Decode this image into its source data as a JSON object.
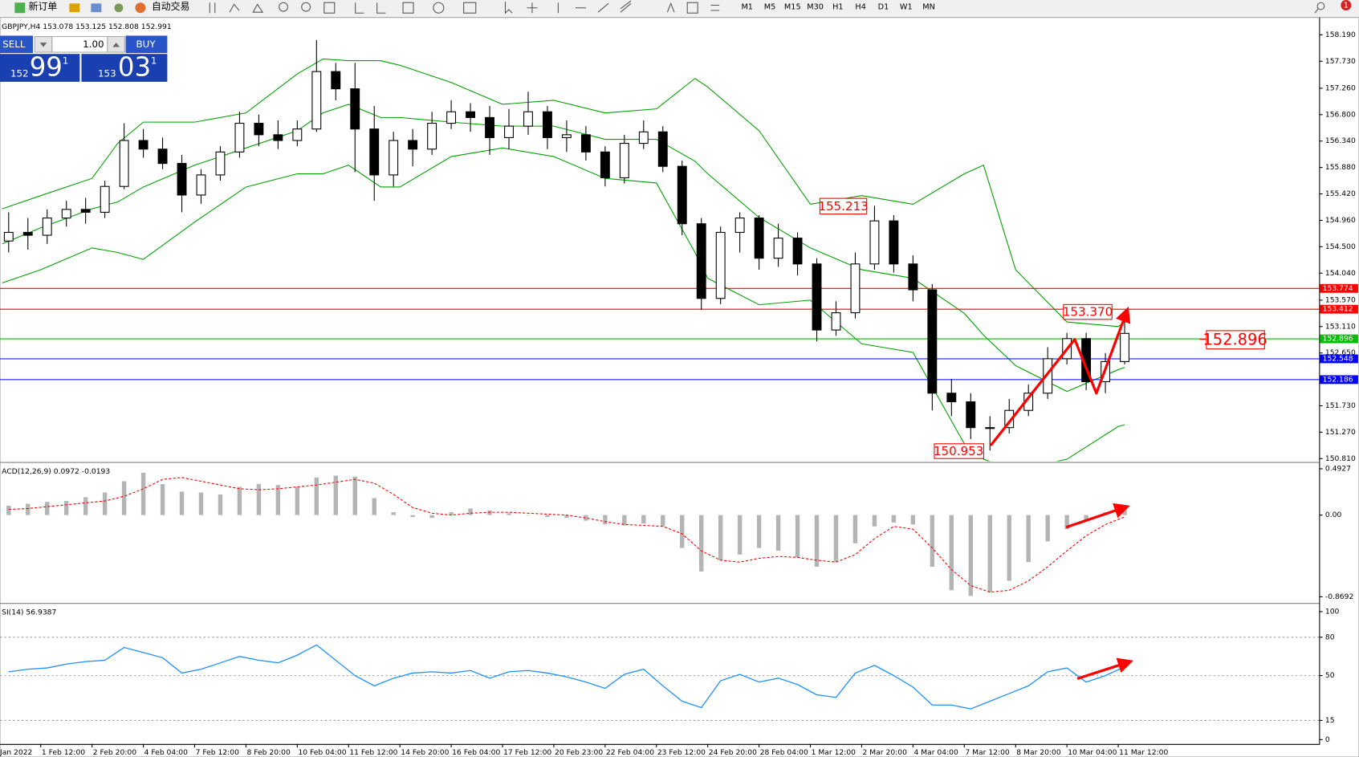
{
  "toolbar": {
    "new_order": "新订单",
    "auto_trading": "自动交易",
    "timeframes": [
      "M1",
      "M5",
      "M15",
      "M30",
      "H1",
      "H4",
      "D1",
      "W1",
      "MN"
    ],
    "badge": "1"
  },
  "one_click": {
    "sell": "SELL",
    "buy": "BUY",
    "lots": "1.00",
    "sell_price": [
      "152",
      "99",
      "1"
    ],
    "buy_price": [
      "153",
      "03",
      "1"
    ]
  },
  "chart_data": [
    {
      "type": "candlestick",
      "title": "GBPJPY,H4  153.078 153.125 152.808 152.991",
      "x": [
        3,
        6,
        9,
        12,
        15,
        18,
        21,
        24,
        27,
        30,
        33,
        36,
        39,
        42,
        45,
        48,
        51,
        54,
        57,
        60,
        63,
        66,
        69,
        72,
        75,
        78,
        81,
        84,
        87,
        90,
        93,
        96,
        99,
        102,
        105,
        108,
        111,
        114,
        117,
        120,
        123,
        126,
        129,
        132,
        135,
        138,
        141,
        144,
        147,
        150,
        153,
        156,
        159,
        162,
        165,
        168,
        171,
        174,
        177
      ],
      "open": [
        154.6,
        154.75,
        154.7,
        155.0,
        155.15,
        155.1,
        155.55,
        156.35,
        156.2,
        155.95,
        155.4,
        155.75,
        156.15,
        156.65,
        156.45,
        156.35,
        156.55,
        157.55,
        157.25,
        156.55,
        155.75,
        156.35,
        156.2,
        156.65,
        156.85,
        156.75,
        156.4,
        156.6,
        156.85,
        156.4,
        156.45,
        156.15,
        155.7,
        156.3,
        156.5,
        155.9,
        154.9,
        153.6,
        154.75,
        155.0,
        154.3,
        154.65,
        154.2,
        153.05,
        153.35,
        154.2,
        154.95,
        154.2,
        153.75,
        151.95,
        151.8,
        151.35,
        151.35,
        151.65,
        151.95,
        152.55,
        152.9,
        152.15,
        152.5
      ],
      "high": [
        155.1,
        155.0,
        155.15,
        155.3,
        155.35,
        155.65,
        156.65,
        156.55,
        156.4,
        156.1,
        155.85,
        156.25,
        156.85,
        156.8,
        156.7,
        156.7,
        158.1,
        157.7,
        157.7,
        156.95,
        156.5,
        156.55,
        156.85,
        157.05,
        157.0,
        156.95,
        156.9,
        157.2,
        156.95,
        156.7,
        156.6,
        156.25,
        156.45,
        156.7,
        156.6,
        156.0,
        155.0,
        154.85,
        155.1,
        155.05,
        154.9,
        154.75,
        154.3,
        153.55,
        154.4,
        155.213,
        155.05,
        154.35,
        153.85,
        152.2,
        151.95,
        151.55,
        151.85,
        152.1,
        152.75,
        153.0,
        153.0,
        152.65,
        153.37
      ],
      "low": [
        154.4,
        154.45,
        154.55,
        154.85,
        154.9,
        155.0,
        155.5,
        156.05,
        155.85,
        155.1,
        155.25,
        155.65,
        156.05,
        156.25,
        156.2,
        156.25,
        156.5,
        157.05,
        155.8,
        155.3,
        155.55,
        155.9,
        156.1,
        156.55,
        156.5,
        156.1,
        156.2,
        156.45,
        156.2,
        156.15,
        156.0,
        155.55,
        155.6,
        156.2,
        155.8,
        154.7,
        153.4,
        153.5,
        154.4,
        154.1,
        154.15,
        154.0,
        152.85,
        152.95,
        153.25,
        154.1,
        154.05,
        153.55,
        151.65,
        151.55,
        151.15,
        150.953,
        151.25,
        151.55,
        151.85,
        152.45,
        152.0,
        151.95,
        152.45
      ],
      "close": [
        154.75,
        154.7,
        155.0,
        155.15,
        155.1,
        155.55,
        156.35,
        156.2,
        155.95,
        155.4,
        155.75,
        156.15,
        156.65,
        156.45,
        156.35,
        156.55,
        157.55,
        157.25,
        156.55,
        155.75,
        156.35,
        156.2,
        156.65,
        156.85,
        156.75,
        156.4,
        156.6,
        156.85,
        156.4,
        156.45,
        156.15,
        155.7,
        156.3,
        156.5,
        155.9,
        154.9,
        153.6,
        154.75,
        155.0,
        154.3,
        154.65,
        154.2,
        153.05,
        153.35,
        154.2,
        154.95,
        154.2,
        153.75,
        151.95,
        151.8,
        151.35,
        151.35,
        151.65,
        151.95,
        152.55,
        152.9,
        152.15,
        152.5,
        152.991
      ],
      "up_color": "#ffffff",
      "down_color": "#000000",
      "wick_color": "#000000",
      "bands": {
        "color": "#00a000",
        "x": [
          2,
          8,
          16,
          20,
          24,
          32,
          40,
          48,
          52,
          56,
          61,
          64,
          72,
          80,
          88,
          96,
          104,
          110,
          112,
          120,
          128,
          136,
          144,
          152,
          155,
          160,
          168,
          176,
          177
        ],
        "upper": [
          155.16,
          155.39,
          155.69,
          156.3,
          156.67,
          156.67,
          156.83,
          157.51,
          157.77,
          157.74,
          157.74,
          157.66,
          157.36,
          156.98,
          157.05,
          156.83,
          156.9,
          157.43,
          157.28,
          156.52,
          155.24,
          155.39,
          155.24,
          155.77,
          155.92,
          154.1,
          153.19,
          153.11,
          153.19
        ],
        "middle": [
          154.55,
          154.83,
          155.16,
          155.28,
          155.54,
          155.92,
          156.22,
          156.52,
          156.83,
          156.98,
          156.75,
          156.75,
          156.67,
          156.6,
          156.6,
          156.37,
          156.37,
          155.99,
          155.77,
          155.01,
          154.48,
          154.1,
          153.95,
          153.34,
          152.96,
          152.43,
          151.98,
          152.36,
          152.4
        ],
        "lower": [
          153.87,
          154.1,
          154.48,
          154.4,
          154.28,
          154.93,
          155.54,
          155.77,
          155.77,
          155.92,
          155.54,
          155.54,
          156.07,
          156.22,
          156.07,
          155.69,
          155.61,
          154.4,
          153.95,
          153.49,
          153.57,
          152.81,
          152.66,
          151.07,
          150.8,
          150.61,
          150.8,
          151.37,
          151.4
        ]
      },
      "lines": [
        {
          "value": 153.774,
          "color": "#ff0000"
        },
        {
          "value": 153.412,
          "color": "#ff0000"
        },
        {
          "value": 152.896,
          "color": "#00c000"
        },
        {
          "value": 152.548,
          "color": "#0000ff"
        },
        {
          "value": 152.186,
          "color": "#0000ff"
        }
      ],
      "annotations": [
        "155.213",
        "153.370",
        "150.953"
      ],
      "xlim": [
        1.6486,
        207.3243
      ],
      "ylim": [
        150.766,
        158.463
      ],
      "yticks": [
        {
          "value": 158.19,
          "label": "158.190"
        },
        {
          "value": 157.73,
          "label": "157.730"
        },
        {
          "value": 157.26,
          "label": "157.260"
        },
        {
          "value": 156.8,
          "label": "156.800"
        },
        {
          "value": 156.34,
          "label": "156.340"
        },
        {
          "value": 155.88,
          "label": "155.880"
        },
        {
          "value": 155.42,
          "label": "155.420"
        },
        {
          "value": 154.96,
          "label": "154.960"
        },
        {
          "value": 154.5,
          "label": "154.500"
        },
        {
          "value": 154.04,
          "label": "154.040"
        },
        {
          "value": 153.57,
          "label": "153.570"
        },
        {
          "value": 153.11,
          "label": "153.110"
        },
        {
          "value": 152.65,
          "label": "152.650"
        },
        {
          "value": 152.19,
          "label": "152.190"
        },
        {
          "value": 151.73,
          "label": "151.730"
        },
        {
          "value": 151.27,
          "label": "151.270"
        },
        {
          "value": 150.81,
          "label": "150.810"
        }
      ],
      "xticks": [
        {
          "value": 0,
          "label": "Jan 2022"
        },
        {
          "value": 8,
          "label": "1 Feb 12:00"
        },
        {
          "value": 16,
          "label": "2 Feb 20:00"
        },
        {
          "value": 24,
          "label": "4 Feb 04:00"
        },
        {
          "value": 32,
          "label": "7 Feb 12:00"
        },
        {
          "value": 40,
          "label": "8 Feb 20:00"
        },
        {
          "value": 48,
          "label": "10 Feb 04:00"
        },
        {
          "value": 56,
          "label": "11 Feb 12:00"
        },
        {
          "value": 64,
          "label": "14 Feb 20:00"
        },
        {
          "value": 72,
          "label": "16 Feb 04:00"
        },
        {
          "value": 80,
          "label": "17 Feb 12:00"
        },
        {
          "value": 88,
          "label": "20 Feb 23:00"
        },
        {
          "value": 96,
          "label": "22 Feb 04:00"
        },
        {
          "value": 104,
          "label": "23 Feb 12:00"
        },
        {
          "value": 112,
          "label": "24 Feb 20:00"
        },
        {
          "value": 120,
          "label": "28 Feb 04:00"
        },
        {
          "value": 128,
          "label": "1 Mar 12:00"
        },
        {
          "value": 136,
          "label": "2 Mar 20:00"
        },
        {
          "value": 144,
          "label": "4 Mar 04:00"
        },
        {
          "value": 152,
          "label": "7 Mar 12:00"
        },
        {
          "value": 160,
          "label": "8 Mar 20:00"
        },
        {
          "value": 168,
          "label": "10 Mar 04:00"
        },
        {
          "value": 176,
          "label": "11 Mar 12:00"
        }
      ]
    },
    {
      "type": "bar",
      "title": "ACD(12,26,9) 0.0972 -0.0193",
      "series": [
        {
          "color": "#b4b4b4",
          "values": [
            0.1,
            0.12,
            0.14,
            0.15,
            0.19,
            0.24,
            0.36,
            0.45,
            0.33,
            0.25,
            0.24,
            0.22,
            0.3,
            0.33,
            0.32,
            0.3,
            0.4,
            0.42,
            0.41,
            0.18,
            0.03,
            -0.02,
            -0.03,
            0.03,
            0.07,
            0.05,
            0.02,
            0.0,
            -0.02,
            -0.03,
            -0.06,
            -0.1,
            -0.11,
            -0.09,
            -0.12,
            -0.35,
            -0.6,
            -0.48,
            -0.42,
            -0.35,
            -0.38,
            -0.45,
            -0.55,
            -0.5,
            -0.3,
            -0.12,
            -0.08,
            -0.1,
            -0.55,
            -0.8,
            -0.86,
            -0.82,
            -0.7,
            -0.5,
            -0.28,
            -0.15,
            -0.05,
            0.03,
            0.0972
          ]
        },
        {
          "color": "#ff0000",
          "style": "dashed",
          "values": [
            0.06,
            0.07,
            0.09,
            0.11,
            0.13,
            0.15,
            0.2,
            0.28,
            0.38,
            0.4,
            0.36,
            0.32,
            0.28,
            0.27,
            0.28,
            0.3,
            0.32,
            0.35,
            0.38,
            0.34,
            0.22,
            0.08,
            0.02,
            0.0,
            0.02,
            0.03,
            0.03,
            0.02,
            0.01,
            0.0,
            -0.03,
            -0.07,
            -0.1,
            -0.11,
            -0.12,
            -0.2,
            -0.38,
            -0.48,
            -0.5,
            -0.46,
            -0.44,
            -0.45,
            -0.48,
            -0.5,
            -0.42,
            -0.25,
            -0.12,
            -0.15,
            -0.35,
            -0.58,
            -0.75,
            -0.82,
            -0.8,
            -0.7,
            -0.55,
            -0.38,
            -0.22,
            -0.1,
            -0.0193
          ]
        }
      ],
      "ylim": [
        -0.926,
        0.546
      ],
      "yticks": [
        0.4927,
        {
          "value": 0,
          "label": "0.00"
        },
        -0.8692
      ]
    },
    {
      "type": "line",
      "title": "SI(14) 56.9387",
      "color": "#1e90ff",
      "values": [
        53,
        55,
        56,
        59,
        61,
        62,
        72,
        68,
        64,
        52,
        55,
        60,
        65,
        62,
        60,
        66,
        74,
        62,
        50,
        42,
        48,
        52,
        53,
        52,
        54,
        48,
        53,
        54,
        52,
        49,
        45,
        40,
        51,
        55,
        42,
        30,
        25,
        46,
        51,
        45,
        48,
        43,
        35,
        33,
        52,
        58,
        50,
        41,
        27,
        27,
        24,
        30,
        36,
        42,
        53,
        56,
        45,
        50,
        56.9387
      ],
      "levels": [
        80,
        50,
        15
      ],
      "ylim": [
        -3.4,
        105.4
      ],
      "yticks": [
        100,
        80,
        50,
        15,
        0
      ]
    }
  ]
}
